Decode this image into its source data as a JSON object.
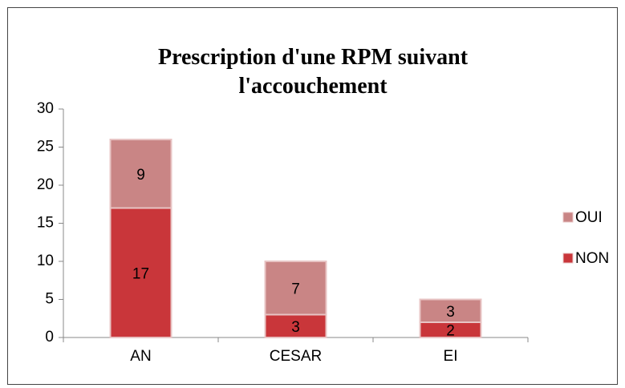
{
  "chart_data": {
    "type": "stacked_bar",
    "title": "Prescription d'une RPM suivant l'accouchement",
    "categories": [
      "AN",
      "CESAR",
      "EI"
    ],
    "series": [
      {
        "name": "NON",
        "color": "#c9363a",
        "values": [
          17,
          3,
          2
        ]
      },
      {
        "name": "OUI",
        "color": "#c98585",
        "values": [
          9,
          7,
          3
        ]
      }
    ],
    "ylim": [
      0,
      30
    ],
    "yticks": [
      0,
      5,
      10,
      15,
      20,
      25,
      30
    ],
    "legend": "right"
  }
}
